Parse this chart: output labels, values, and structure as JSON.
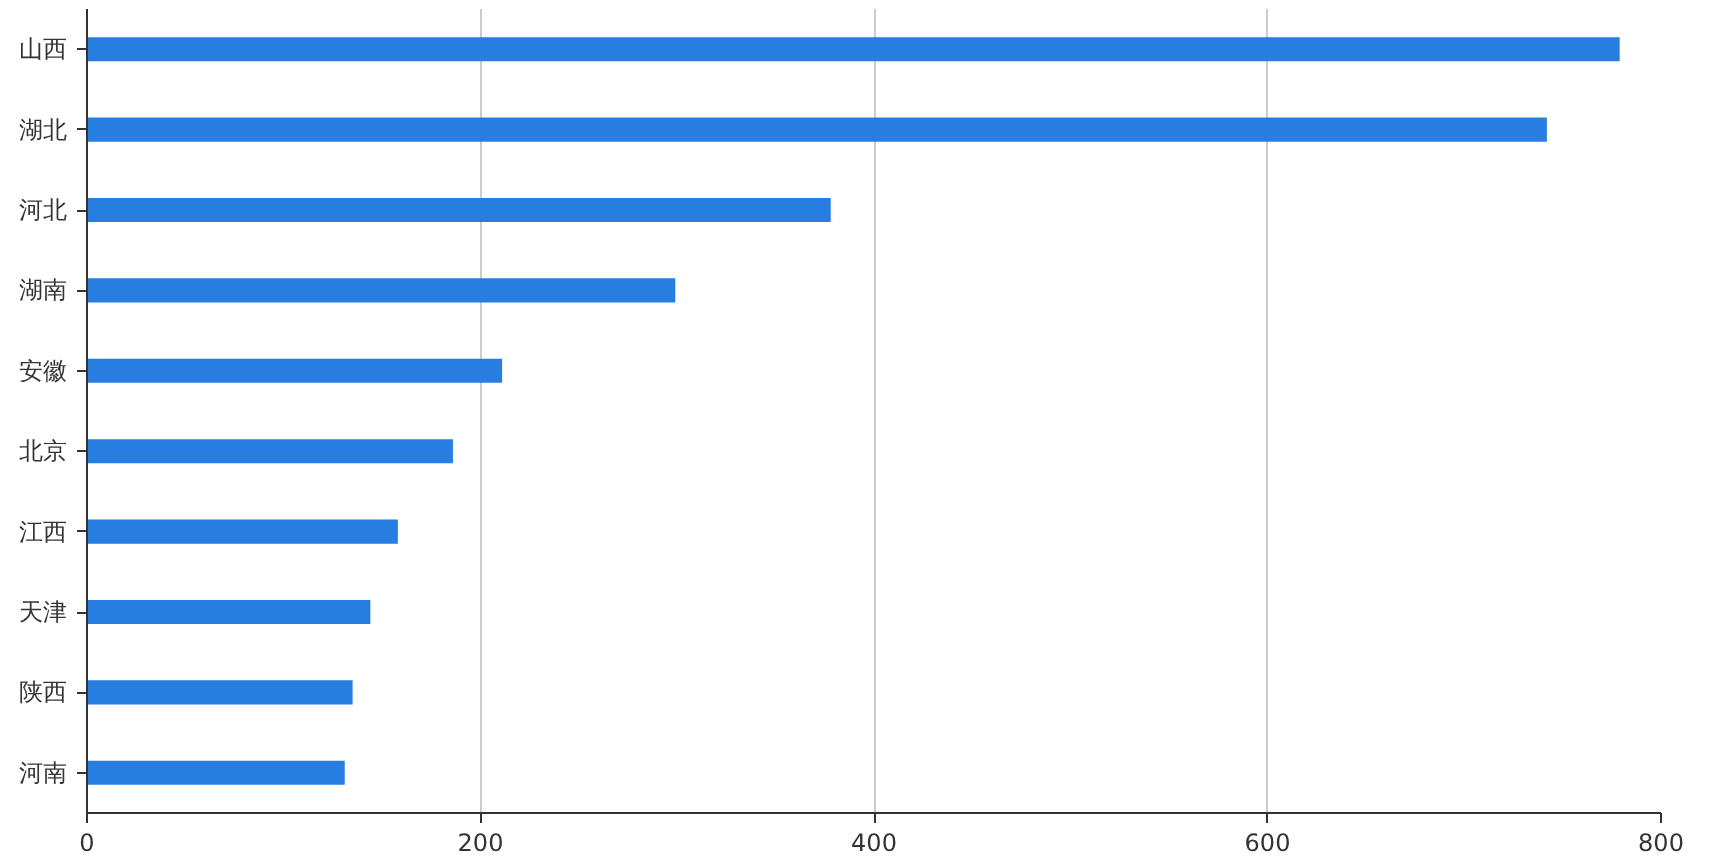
{
  "chart_data": {
    "type": "bar",
    "orientation": "horizontal",
    "categories": [
      "山西",
      "湖北",
      "河北",
      "湖南",
      "安徽",
      "北京",
      "江西",
      "天津",
      "陕西",
      "河南"
    ],
    "values": [
      779,
      742,
      378,
      299,
      211,
      186,
      158,
      144,
      135,
      131
    ],
    "color": "#277ee0",
    "xlim": [
      0,
      800
    ],
    "xticks": [
      0,
      200,
      400,
      600,
      800
    ],
    "grid": "x"
  }
}
